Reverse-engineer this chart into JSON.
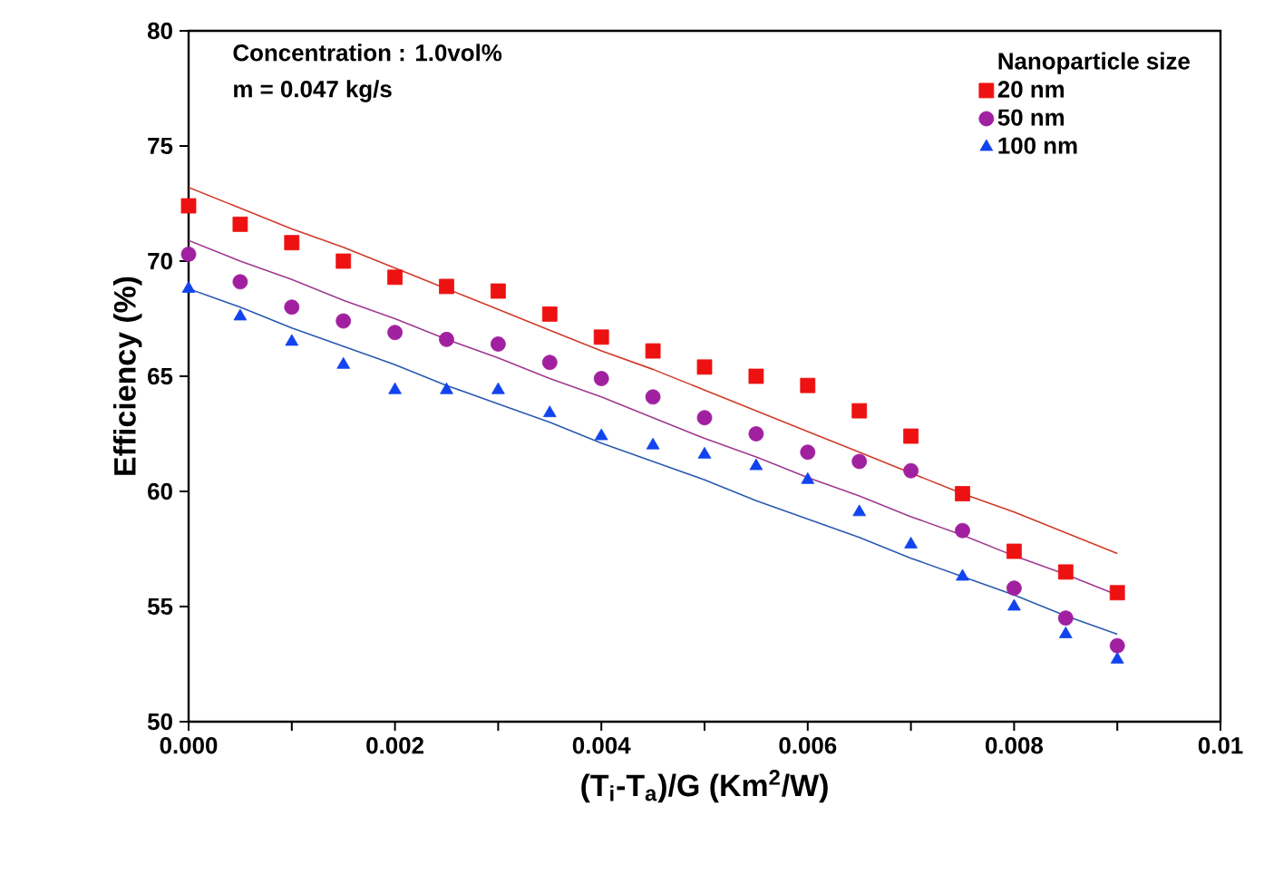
{
  "chart_data": {
    "type": "scatter",
    "xlabel": "(T$_{i}$-T$_{a}$)/G (Km$^{2}$/W)",
    "ylabel": "Efficiency (%)",
    "legend_title": "Nanoparticle size",
    "legend": "top right",
    "annotations": [
      "Concentration : 1.0vol%",
      "m = 0.047 kg/s"
    ],
    "x": [
      0,
      0.0005,
      0.001,
      0.0015,
      0.002,
      0.0025,
      0.003,
      0.0035,
      0.004,
      0.0045,
      0.005,
      0.0055,
      0.006,
      0.0065,
      0.007,
      0.0075,
      0.008,
      0.0085,
      0.009
    ],
    "series": [
      {
        "name": "20 nm",
        "color": "#ee1111",
        "marker": "square",
        "values": [
          72.4,
          71.6,
          70.8,
          70.0,
          69.3,
          68.9,
          68.7,
          67.7,
          66.7,
          66.1,
          65.4,
          65.0,
          64.6,
          63.5,
          62.4,
          59.9,
          57.4,
          56.5,
          55.6
        ]
      },
      {
        "name": "50 nm",
        "color": "#a020a0",
        "marker": "circle",
        "values": [
          70.3,
          69.1,
          68.0,
          67.4,
          66.9,
          66.6,
          66.4,
          65.6,
          64.9,
          64.1,
          63.2,
          62.5,
          61.7,
          61.3,
          60.9,
          58.3,
          55.8,
          54.5,
          53.3
        ]
      },
      {
        "name": "100 nm",
        "color": "#1144ee",
        "marker": "triangle",
        "values": [
          68.8,
          67.6,
          66.5,
          65.5,
          64.4,
          64.4,
          64.4,
          63.4,
          62.4,
          62.0,
          61.6,
          61.1,
          60.5,
          59.1,
          57.7,
          56.3,
          55.0,
          53.8,
          52.7
        ]
      },
      {
        "type": "line",
        "color": "#d03a2a",
        "values": [
          73.2,
          72.3,
          71.4,
          70.6,
          69.7,
          68.8,
          67.9,
          67.0,
          66.1,
          65.3,
          64.4,
          63.5,
          62.6,
          61.7,
          60.8,
          59.9,
          59.1,
          58.2,
          57.3
        ]
      },
      {
        "type": "line",
        "color": "#a03a90",
        "values": [
          70.9,
          70.0,
          69.2,
          68.3,
          67.5,
          66.6,
          65.8,
          64.9,
          64.1,
          63.2,
          62.3,
          61.5,
          60.6,
          59.8,
          58.9,
          58.1,
          57.2,
          56.4,
          55.5
        ]
      },
      {
        "type": "line",
        "color": "#2a5ab0",
        "values": [
          68.8,
          68.0,
          67.1,
          66.3,
          65.5,
          64.6,
          63.8,
          63.0,
          62.1,
          61.3,
          60.5,
          59.6,
          58.8,
          58.0,
          57.1,
          56.3,
          55.5,
          54.6,
          53.8
        ]
      }
    ],
    "xlim": [
      0,
      0.01
    ],
    "ylim": [
      50,
      80
    ],
    "xticks": [
      {
        "value": 0,
        "label": "0.000"
      },
      {
        "value": 0.001,
        "label": null
      },
      {
        "value": 0.002,
        "label": "0.002"
      },
      {
        "value": 0.003,
        "label": null
      },
      {
        "value": 0.004,
        "label": "0.004"
      },
      {
        "value": 0.005,
        "label": null
      },
      {
        "value": 0.006,
        "label": "0.006"
      },
      {
        "value": 0.007,
        "label": null
      },
      {
        "value": 0.008,
        "label": "0.008"
      },
      {
        "value": 0.009,
        "label": null
      },
      {
        "value": 0.01,
        "label": "0.01"
      }
    ],
    "yticks": [
      50,
      55,
      60,
      65,
      70,
      75,
      80
    ]
  }
}
